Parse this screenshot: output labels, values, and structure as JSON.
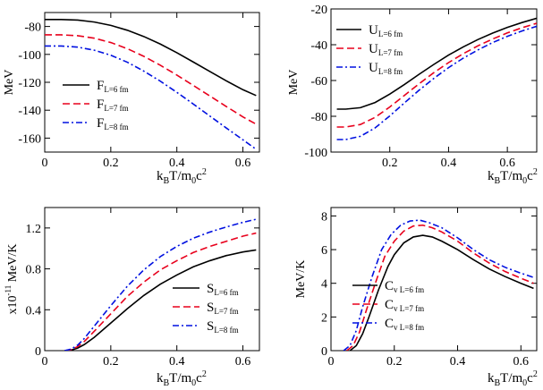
{
  "chart_data": [
    {
      "type": "line",
      "panel": "top-left",
      "title": "",
      "xlabel": {
        "main": "k",
        "sub1": "B",
        "mid": "T/m",
        "sub2": "0",
        "end": "c",
        "sup": "2"
      },
      "ylabel": {
        "text": "MeV",
        "scale": ""
      },
      "xlim": [
        0,
        0.65
      ],
      "ylim": [
        -170,
        -70
      ],
      "xticks": [
        0,
        0.2,
        0.4,
        0.6
      ],
      "xtick_labels": [
        "0",
        "0.2",
        "0.4",
        "0.6"
      ],
      "yticks": [
        -80,
        -100,
        -120,
        -140,
        -160
      ],
      "ytick_labels": [
        "-80",
        "-100",
        "-120",
        "-140",
        "-160"
      ],
      "legend_position": "center-left",
      "series": [
        {
          "name_main": "F",
          "name_sub": "L=6 fm",
          "color": "#000000",
          "dash": "",
          "x": [
            0,
            0.05,
            0.1,
            0.15,
            0.2,
            0.25,
            0.3,
            0.35,
            0.4,
            0.45,
            0.5,
            0.55,
            0.6,
            0.64
          ],
          "y": [
            -75,
            -75,
            -75.4,
            -76.8,
            -79.2,
            -82.7,
            -87.2,
            -92.6,
            -98.8,
            -105.5,
            -112.3,
            -119.0,
            -125.3,
            -129.5
          ]
        },
        {
          "name_main": "F",
          "name_sub": "L=7 fm",
          "color": "#e8001c",
          "dash": "8,4",
          "x": [
            0,
            0.05,
            0.1,
            0.15,
            0.2,
            0.25,
            0.3,
            0.35,
            0.4,
            0.45,
            0.5,
            0.55,
            0.6,
            0.64
          ],
          "y": [
            -86,
            -86,
            -86.6,
            -88.4,
            -91.5,
            -95.9,
            -101.4,
            -107.8,
            -114.8,
            -122.3,
            -129.8,
            -137.4,
            -144.8,
            -150.0
          ]
        },
        {
          "name_main": "F",
          "name_sub": "L=8 fm",
          "color": "#0010e0",
          "dash": "7,3,2,3",
          "x": [
            0,
            0.05,
            0.1,
            0.15,
            0.2,
            0.25,
            0.3,
            0.35,
            0.4,
            0.45,
            0.5,
            0.55,
            0.6,
            0.64
          ],
          "y": [
            -94,
            -94,
            -94.8,
            -97.0,
            -100.6,
            -105.6,
            -112.0,
            -119.2,
            -127.2,
            -135.6,
            -144.2,
            -152.8,
            -161.2,
            -168.0
          ]
        }
      ]
    },
    {
      "type": "line",
      "panel": "top-right",
      "title": "",
      "xlabel": {
        "main": "k",
        "sub1": "B",
        "mid": "T/m",
        "sub2": "0",
        "end": "c",
        "sup": "2"
      },
      "ylabel": {
        "text": "MeV",
        "scale": ""
      },
      "xlim": [
        0,
        0.7
      ],
      "ylim": [
        -100,
        -20
      ],
      "xticks": [
        0.2,
        0.4,
        0.6
      ],
      "xtick_labels": [
        "0.2",
        "0.4",
        "0.6"
      ],
      "yticks": [
        -20,
        -40,
        -60,
        -80,
        -100
      ],
      "ytick_labels": [
        "-20",
        "-40",
        "-60",
        "-80",
        "-100"
      ],
      "legend_position": "top-left",
      "series": [
        {
          "name_main": "U",
          "name_sub": "L=6 fm",
          "color": "#000000",
          "dash": "",
          "x": [
            0.02,
            0.05,
            0.1,
            0.15,
            0.2,
            0.25,
            0.3,
            0.35,
            0.4,
            0.45,
            0.5,
            0.55,
            0.6,
            0.65,
            0.7
          ],
          "y": [
            -76,
            -76,
            -75.2,
            -72.3,
            -67.6,
            -62.2,
            -56.5,
            -51.0,
            -45.8,
            -41.2,
            -37.1,
            -33.5,
            -30.3,
            -27.6,
            -25.2
          ]
        },
        {
          "name_main": "U",
          "name_sub": "L=7 fm",
          "color": "#e8001c",
          "dash": "8,4",
          "x": [
            0.02,
            0.05,
            0.1,
            0.15,
            0.2,
            0.25,
            0.3,
            0.35,
            0.4,
            0.45,
            0.5,
            0.55,
            0.6,
            0.65,
            0.7
          ],
          "y": [
            -86,
            -86,
            -84.6,
            -80.6,
            -74.8,
            -68.3,
            -61.8,
            -55.6,
            -50.0,
            -45.0,
            -40.6,
            -36.8,
            -33.4,
            -30.5,
            -28.0
          ]
        },
        {
          "name_main": "U",
          "name_sub": "L=8 fm",
          "color": "#0010e0",
          "dash": "7,3,2,3",
          "x": [
            0.02,
            0.05,
            0.1,
            0.15,
            0.2,
            0.25,
            0.3,
            0.35,
            0.4,
            0.45,
            0.5,
            0.55,
            0.6,
            0.65,
            0.7
          ],
          "y": [
            -93,
            -93,
            -91.2,
            -86.5,
            -79.8,
            -72.5,
            -65.4,
            -58.8,
            -52.8,
            -47.5,
            -42.9,
            -38.8,
            -35.3,
            -32.3,
            -29.7
          ]
        }
      ]
    },
    {
      "type": "line",
      "panel": "bottom-left",
      "title": "",
      "xlabel": {
        "main": "k",
        "sub1": "B",
        "mid": "T/m",
        "sub2": "0",
        "end": "c",
        "sup": "2"
      },
      "ylabel": {
        "text": "MeV/K",
        "scale": "x10",
        "scale_exp": "-11"
      },
      "xlim": [
        0,
        0.65
      ],
      "ylim": [
        0,
        1.4
      ],
      "xticks": [
        0,
        0.2,
        0.4,
        0.6
      ],
      "xtick_labels": [
        "0",
        "0.2",
        "0.4",
        "0.6"
      ],
      "yticks": [
        0,
        0.4,
        0.8,
        1.2
      ],
      "ytick_labels": [
        "0",
        "0.4",
        "0.8",
        "1.2"
      ],
      "legend_position": "bottom-right",
      "series": [
        {
          "name_main": "S",
          "name_sub": "L=6 fm",
          "color": "#000000",
          "dash": "",
          "x": [
            0.06,
            0.08,
            0.1,
            0.12,
            0.15,
            0.2,
            0.25,
            0.3,
            0.35,
            0.4,
            0.45,
            0.5,
            0.55,
            0.6,
            0.64
          ],
          "y": [
            0,
            0.005,
            0.025,
            0.06,
            0.13,
            0.27,
            0.41,
            0.54,
            0.65,
            0.74,
            0.82,
            0.88,
            0.93,
            0.965,
            0.985
          ]
        },
        {
          "name_main": "S",
          "name_sub": "L=7 fm",
          "color": "#e8001c",
          "dash": "8,4",
          "x": [
            0.06,
            0.08,
            0.1,
            0.12,
            0.15,
            0.2,
            0.25,
            0.3,
            0.35,
            0.4,
            0.45,
            0.5,
            0.55,
            0.6,
            0.64
          ],
          "y": [
            0,
            0.01,
            0.04,
            0.09,
            0.19,
            0.36,
            0.53,
            0.67,
            0.79,
            0.88,
            0.96,
            1.02,
            1.07,
            1.12,
            1.15
          ]
        },
        {
          "name_main": "S",
          "name_sub": "L=8 fm",
          "color": "#0010e0",
          "dash": "7,3,2,3",
          "x": [
            0.06,
            0.08,
            0.1,
            0.12,
            0.15,
            0.2,
            0.25,
            0.3,
            0.35,
            0.4,
            0.45,
            0.5,
            0.55,
            0.6,
            0.64
          ],
          "y": [
            0,
            0.015,
            0.055,
            0.12,
            0.24,
            0.44,
            0.63,
            0.79,
            0.92,
            1.02,
            1.1,
            1.16,
            1.21,
            1.255,
            1.285
          ]
        }
      ]
    },
    {
      "type": "line",
      "panel": "bottom-right",
      "title": "",
      "xlabel": {
        "main": "k",
        "sub1": "B",
        "mid": "T/m",
        "sub2": "0",
        "end": "c",
        "sup": "2"
      },
      "ylabel": {
        "text": "MeV/K",
        "scale": ""
      },
      "xlim": [
        0,
        0.65
      ],
      "ylim": [
        0,
        8.5
      ],
      "xticks": [
        0,
        0.2,
        0.4,
        0.6
      ],
      "xtick_labels": [
        "0",
        "0.2",
        "0.4",
        "0.6"
      ],
      "yticks": [
        0,
        2,
        4,
        6,
        8
      ],
      "ytick_labels": [
        "0",
        "2",
        "4",
        "6",
        "8"
      ],
      "legend_position": "bottom-right",
      "series": [
        {
          "name_main": "C",
          "name_sub": "v L=6 fm",
          "color": "#000000",
          "dash": "",
          "x": [
            0.06,
            0.08,
            0.1,
            0.12,
            0.15,
            0.18,
            0.2,
            0.23,
            0.26,
            0.29,
            0.32,
            0.35,
            0.4,
            0.45,
            0.5,
            0.55,
            0.6,
            0.64
          ],
          "y": [
            0,
            0.3,
            1.0,
            2.0,
            3.6,
            5.0,
            5.7,
            6.4,
            6.75,
            6.85,
            6.75,
            6.5,
            6.0,
            5.4,
            4.85,
            4.4,
            4.0,
            3.7
          ]
        },
        {
          "name_main": "C",
          "name_sub": "v L=7 fm",
          "color": "#e8001c",
          "dash": "8,4",
          "x": [
            0.05,
            0.07,
            0.09,
            0.11,
            0.14,
            0.17,
            0.2,
            0.23,
            0.26,
            0.29,
            0.32,
            0.35,
            0.4,
            0.45,
            0.5,
            0.55,
            0.6,
            0.64
          ],
          "y": [
            0,
            0.3,
            1.1,
            2.3,
            4.0,
            5.6,
            6.5,
            7.1,
            7.4,
            7.45,
            7.3,
            7.05,
            6.5,
            5.8,
            5.2,
            4.7,
            4.3,
            4.0
          ]
        },
        {
          "name_main": "C",
          "name_sub": "v L=8 fm",
          "color": "#0010e0",
          "dash": "7,3,2,3",
          "x": [
            0.04,
            0.06,
            0.08,
            0.1,
            0.13,
            0.16,
            0.19,
            0.22,
            0.25,
            0.28,
            0.31,
            0.35,
            0.4,
            0.45,
            0.5,
            0.55,
            0.6,
            0.64
          ],
          "y": [
            0,
            0.3,
            1.2,
            2.6,
            4.4,
            6.0,
            6.9,
            7.45,
            7.7,
            7.75,
            7.6,
            7.3,
            6.7,
            6.0,
            5.4,
            4.95,
            4.6,
            4.35
          ]
        }
      ]
    }
  ]
}
